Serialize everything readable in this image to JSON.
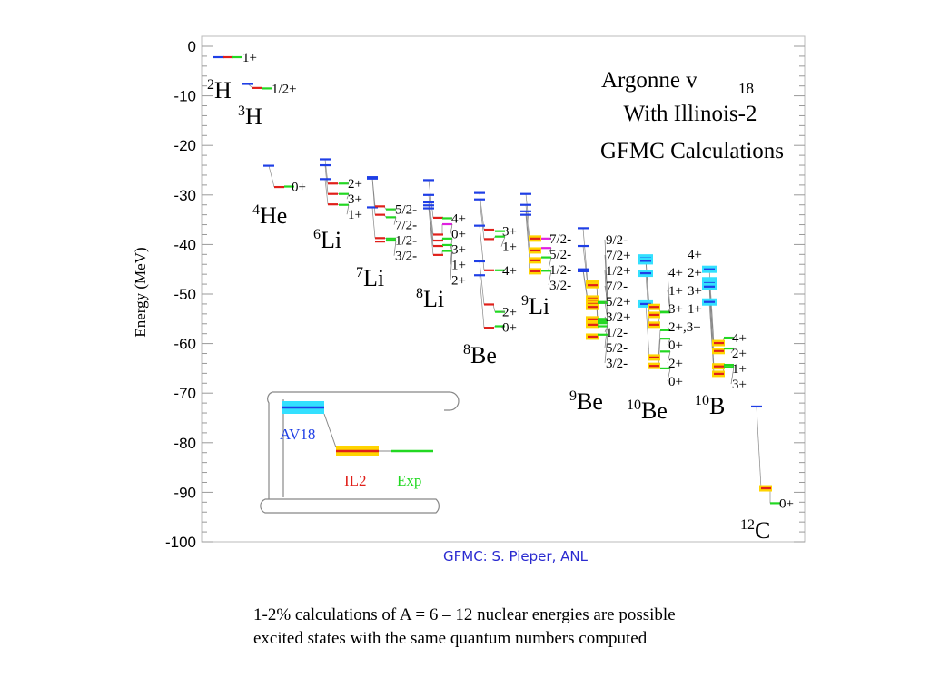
{
  "chart_data": {
    "type": "level-scheme",
    "title": [
      "Argonne v18",
      "With Illinois-2",
      "GFMC Calculations"
    ],
    "ylabel": "Energy (MeV)",
    "ylim": [
      -100,
      0
    ],
    "yticks": [
      0,
      -10,
      -20,
      -30,
      -40,
      -50,
      -60,
      -70,
      -80,
      -90,
      -100
    ],
    "legend": {
      "av18": "AV18",
      "il2": "IL2",
      "exp": "Exp",
      "placement": "bottom-left"
    },
    "colors": {
      "av18": "#1f3fe6",
      "il2": "#e0201a",
      "exp": "#22d822",
      "exp_alt": "#e020e0",
      "halo_av18": "#33e0ff",
      "halo_il2": "#ffd400"
    },
    "nuclei": [
      {
        "name": "2H",
        "mass": "2",
        "sym": "H",
        "av18": [
          -2.2
        ],
        "il2": [
          -2.2
        ],
        "exp": [
          {
            "e": -2.2,
            "label": "1+"
          }
        ]
      },
      {
        "name": "3H",
        "mass": "3",
        "sym": "H",
        "av18": [
          -7.6
        ],
        "il2": [
          -8.4
        ],
        "exp": [
          {
            "e": -8.5,
            "label": "1/2+"
          }
        ]
      },
      {
        "name": "4He",
        "mass": "4",
        "sym": "He",
        "av18": [
          -24.1
        ],
        "il2": [
          -28.4
        ],
        "exp": [
          {
            "e": -28.3,
            "label": "0+"
          }
        ]
      },
      {
        "name": "6Li",
        "mass": "6",
        "sym": "Li",
        "av18": [
          -22.8,
          -24.0,
          -26.8
        ],
        "il2": [
          -27.7,
          -29.8,
          -31.9
        ],
        "exp": [
          {
            "e": -27.7,
            "label": "2+"
          },
          {
            "e": -29.8,
            "label": "3+"
          },
          {
            "e": -32.0,
            "label": "1+"
          }
        ]
      },
      {
        "name": "7Li",
        "mass": "7",
        "sym": "Li",
        "av18": [
          -26.4,
          -26.7,
          -32.5
        ],
        "il2": [
          -32.3,
          -34.0,
          -38.7,
          -39.4
        ],
        "exp": [
          {
            "e": -32.9,
            "label": "5/2-"
          },
          {
            "e": -34.5,
            "label": "7/2-"
          },
          {
            "e": -38.8,
            "label": "1/2-"
          },
          {
            "e": -39.2,
            "label": "3/2-"
          }
        ]
      },
      {
        "name": "8Li",
        "mass": "8",
        "sym": "Li",
        "av18": [
          -27.0,
          -30.0,
          -31.5,
          -32.1,
          -32.7
        ],
        "il2": [
          -34.6,
          -38.0,
          -39.2,
          -40.3,
          -42.1
        ],
        "exp": [
          {
            "e": -34.7,
            "label": "4+"
          },
          {
            "e": -35.9,
            "label": "0+",
            "alt": true
          },
          {
            "e": -38.8,
            "label": "3+"
          },
          {
            "e": -40.1,
            "label": "1+"
          },
          {
            "e": -41.3,
            "label": "2+"
          }
        ]
      },
      {
        "name": "8Be",
        "mass": "8",
        "sym": "Be",
        "av18": [
          -29.6,
          -30.9,
          -36.2,
          -43.4,
          -46.2
        ],
        "il2": [
          -37.0,
          -38.9,
          -45.2,
          -52.1,
          -56.8
        ],
        "exp": [
          {
            "e": -37.3,
            "label": "3+"
          },
          {
            "e": -38.4,
            "label": "1+"
          },
          {
            "e": -45.2,
            "label": "4+"
          },
          {
            "e": -53.6,
            "label": "2+"
          },
          {
            "e": -56.5,
            "label": "0+"
          }
        ]
      },
      {
        "name": "9Li",
        "mass": "9",
        "sym": "Li",
        "av18": [
          -29.8,
          -32.0,
          -33.3,
          -34.0
        ],
        "il2": [
          -38.8,
          -41.2,
          -43.2,
          -45.4
        ],
        "exp": [
          {
            "e": -38.8,
            "label": "7/2-",
            "alt": true
          },
          {
            "e": -40.7,
            "label": "5/2-",
            "alt": true
          },
          {
            "e": -42.6,
            "label": "1/2-"
          },
          {
            "e": -45.3,
            "label": "3/2-"
          }
        ]
      },
      {
        "name": "9Be",
        "mass": "9",
        "sym": "Be",
        "av18": [
          -36.7,
          -40.3,
          -45.0,
          -45.4
        ],
        "il2": [
          -47.8,
          -48.2,
          -50.9,
          -51.5,
          -52.0,
          -52.6,
          -55.1,
          -56.2,
          -58.6
        ],
        "exp": [
          {
            "e": -51.6,
            "label": "9/2-"
          },
          {
            "e": -51.8,
            "label": "7/2+"
          },
          {
            "e": -55.0,
            "label": "1/2+"
          },
          {
            "e": -51.7,
            "label": "7/2-"
          },
          {
            "e": -55.3,
            "label": "5/2+"
          },
          {
            "e": -55.9,
            "label": "3/2+"
          },
          {
            "e": -56.5,
            "label": "1/2-"
          },
          {
            "e": -55.7,
            "label": "5/2-"
          },
          {
            "e": -58.2,
            "label": "3/2-"
          }
        ]
      },
      {
        "name": "10Be",
        "mass": "10",
        "sym": "Be",
        "av18": [
          -42.7,
          -43.3,
          -45.8,
          -52.0
        ],
        "il2": [
          -52.6,
          -54.2,
          -56.2,
          -62.8,
          -64.5
        ],
        "exp": [
          {
            "e": -53.6,
            "label": "4+",
            "alt": true
          },
          {
            "e": -53.6,
            "label": "1+"
          },
          {
            "e": -53.7,
            "label": "3+"
          },
          {
            "e": -57.3,
            "label": "2+,3+"
          },
          {
            "e": -59.0,
            "label": "0+"
          },
          {
            "e": -61.6,
            "label": "2+"
          },
          {
            "e": -65.0,
            "label": "0+"
          }
        ]
      },
      {
        "name": "10B",
        "mass": "10",
        "sym": "B",
        "av18": [
          -45.0,
          -47.3,
          -47.8,
          -48.5,
          -51.6
        ],
        "il2": [
          -59.9,
          -61.5,
          -64.6,
          -66.1
        ],
        "upper_labels": [
          "4+",
          "2+",
          "3+",
          "1+"
        ],
        "exp": [
          {
            "e": -58.8,
            "label": "4+"
          },
          {
            "e": -61.0,
            "label": "2+"
          },
          {
            "e": -64.3,
            "label": "1+"
          },
          {
            "e": -64.7,
            "label": "3+"
          }
        ]
      },
      {
        "name": "12C",
        "mass": "12",
        "sym": "C",
        "av18": [
          -72.7
        ],
        "il2": [
          -89.2
        ],
        "exp": [
          {
            "e": -92.2,
            "label": "0+"
          }
        ]
      }
    ]
  },
  "credit": "GFMC: S. Pieper, ANL",
  "caption": {
    "line1": "1-2% calculations of A = 6 – 12 nuclear energies are possible",
    "line2": "excited states with the same quantum numbers computed"
  }
}
